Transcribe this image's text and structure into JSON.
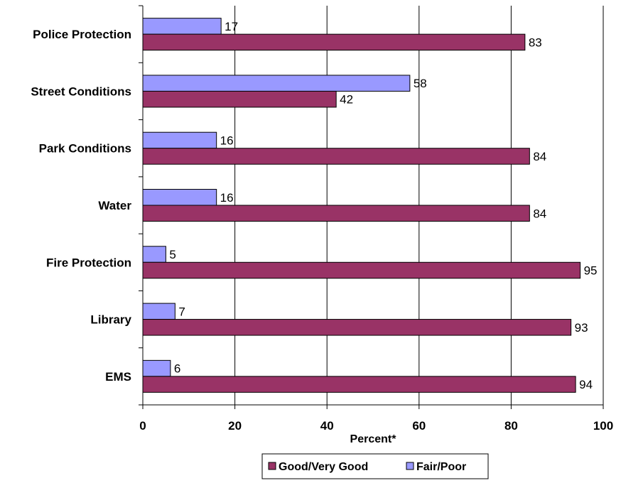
{
  "chart_data": {
    "type": "bar",
    "orientation": "horizontal",
    "categories": [
      "Police Protection",
      "Street Conditions",
      "Park Conditions",
      "Water",
      "Fire Protection",
      "Library",
      "EMS"
    ],
    "series": [
      {
        "name": "Good/Very Good",
        "values": [
          83,
          42,
          84,
          84,
          95,
          93,
          94
        ],
        "color": "#993366"
      },
      {
        "name": "Fair/Poor",
        "values": [
          17,
          58,
          16,
          16,
          5,
          7,
          6
        ],
        "color": "#9999FF"
      }
    ],
    "title": "",
    "xlabel": "Percent*",
    "ylabel": "",
    "xlim": [
      0,
      100
    ],
    "xticks": [
      0,
      20,
      40,
      60,
      80,
      100
    ],
    "grid": "vertical",
    "legend": "bottom",
    "data_labels": true
  }
}
